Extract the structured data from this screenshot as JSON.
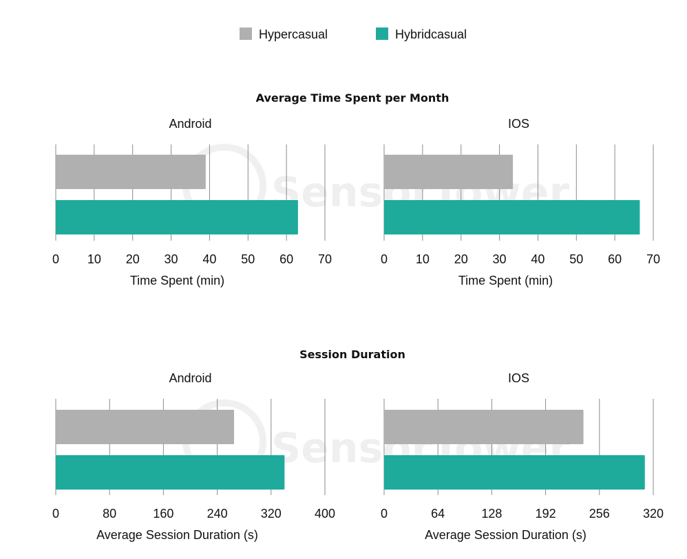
{
  "legend": [
    {
      "name": "Hypercasual",
      "color": "#b0b0b0"
    },
    {
      "name": "Hybridcasual",
      "color": "#1eab9c"
    }
  ],
  "watermark": {
    "text": "SensorTower"
  },
  "sections": [
    {
      "title": "Average Time Spent per Month"
    },
    {
      "title": "Session Duration"
    }
  ],
  "chart_data": [
    {
      "type": "bar",
      "orientation": "horizontal",
      "title": "Android",
      "section": "Average Time Spent per Month",
      "xlabel": "Time Spent (min)",
      "xlim": [
        0,
        70
      ],
      "ticks": [
        0,
        10,
        20,
        30,
        40,
        50,
        60,
        70
      ],
      "grid": true,
      "series": [
        {
          "name": "Hypercasual",
          "value": 39,
          "color": "#b0b0b0"
        },
        {
          "name": "Hybridcasual",
          "value": 63,
          "color": "#1eab9c"
        }
      ]
    },
    {
      "type": "bar",
      "orientation": "horizontal",
      "title": "IOS",
      "section": "Average Time Spent per Month",
      "xlabel": "Time Spent (min)",
      "xlim": [
        0,
        70
      ],
      "ticks": [
        0,
        10,
        20,
        30,
        40,
        50,
        60,
        70
      ],
      "grid": true,
      "series": [
        {
          "name": "Hypercasual",
          "value": 33.5,
          "color": "#b0b0b0"
        },
        {
          "name": "Hybridcasual",
          "value": 66.5,
          "color": "#1eab9c"
        }
      ]
    },
    {
      "type": "bar",
      "orientation": "horizontal",
      "title": "Android",
      "section": "Session Duration",
      "xlabel": "Average Session Duration (s)",
      "xlim": [
        0,
        400
      ],
      "ticks": [
        0,
        80,
        160,
        240,
        320,
        400
      ],
      "grid": true,
      "series": [
        {
          "name": "Hypercasual",
          "value": 265,
          "color": "#b0b0b0"
        },
        {
          "name": "Hybridcasual",
          "value": 340,
          "color": "#1eab9c"
        }
      ]
    },
    {
      "type": "bar",
      "orientation": "horizontal",
      "title": "IOS",
      "section": "Session Duration",
      "xlabel": "Average Session Duration (s)",
      "xlim": [
        0,
        320
      ],
      "ticks": [
        0,
        64,
        128,
        192,
        256,
        320
      ],
      "grid": true,
      "series": [
        {
          "name": "Hypercasual",
          "value": 237,
          "color": "#b0b0b0"
        },
        {
          "name": "Hybridcasual",
          "value": 310,
          "color": "#1eab9c"
        }
      ]
    }
  ]
}
